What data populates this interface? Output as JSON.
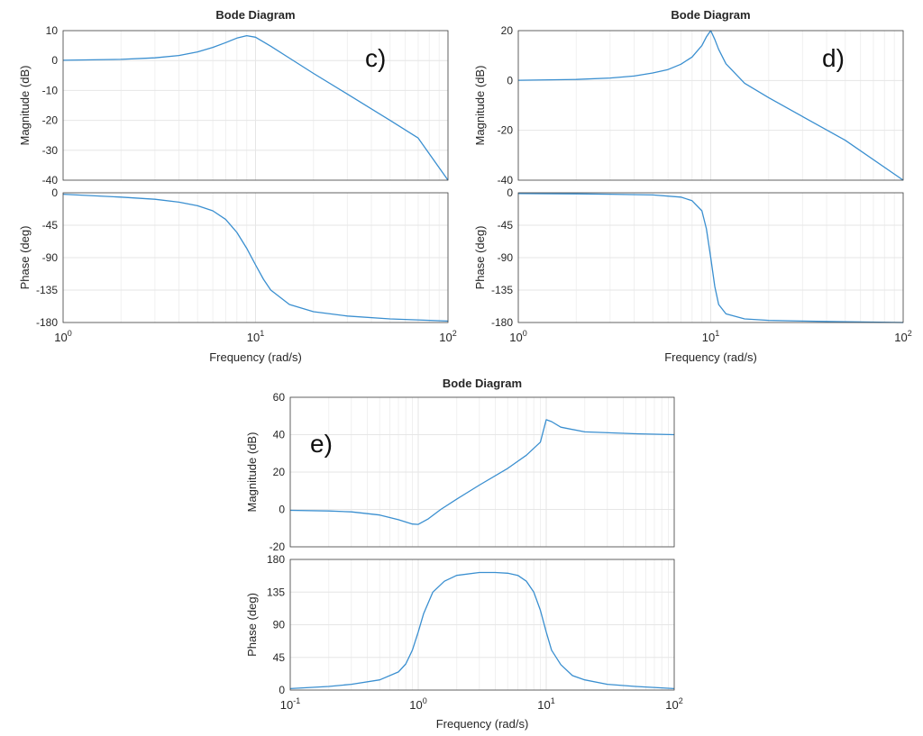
{
  "style": {
    "line_color": "#3a8fd0",
    "grid_color": "#e6e6e6",
    "axis_color": "#404040",
    "label_color": "#262626",
    "plot_bg": "#ffffff"
  },
  "chart_data": [
    {
      "type": "line",
      "title": "Bode Diagram",
      "panel_label": "c)",
      "xlabel": "Frequency  (rad/s)",
      "x_scale": "log",
      "x_decades": [
        0,
        2
      ],
      "x_tick_labels": [
        {
          "base": "10",
          "exp": "0"
        },
        {
          "base": "10",
          "exp": "1"
        },
        {
          "base": "10",
          "exp": "2"
        }
      ],
      "magnitude": {
        "ylabel": "Magnitude (dB)",
        "ylim": [
          -40,
          10
        ],
        "yticks": [
          -40,
          -30,
          -20,
          -10,
          0,
          10
        ],
        "series": [
          {
            "name": "magnitude",
            "x": [
              1,
              2,
              3,
              4,
              5,
              6,
              7,
              8,
              9,
              10,
              12,
              15,
              20,
              30,
              50,
              70,
              100
            ],
            "y": [
              0.1,
              0.4,
              0.9,
              1.7,
              2.9,
              4.4,
              6.0,
              7.5,
              8.3,
              7.8,
              4.8,
              0.8,
              -4.3,
              -11.2,
              -20.0,
              -25.9,
              -40.0
            ]
          }
        ]
      },
      "phase": {
        "ylabel": "Phase (deg)",
        "ylim": [
          -180,
          0
        ],
        "yticks": [
          -180,
          -135,
          -90,
          -45,
          0
        ],
        "series": [
          {
            "name": "phase",
            "x": [
              1,
              2,
              3,
              4,
              5,
              6,
              7,
              8,
              9,
              10,
              11,
              12,
              15,
              20,
              30,
              50,
              100
            ],
            "y": [
              -2,
              -6,
              -9,
              -13,
              -18,
              -25,
              -37,
              -55,
              -77,
              -100,
              -120,
              -135,
              -155,
              -165,
              -171,
              -175,
              -178
            ]
          }
        ]
      }
    },
    {
      "type": "line",
      "title": "Bode Diagram",
      "panel_label": "d)",
      "xlabel": "Frequency  (rad/s)",
      "x_scale": "log",
      "x_decades": [
        0,
        2
      ],
      "x_tick_labels": [
        {
          "base": "10",
          "exp": "0"
        },
        {
          "base": "10",
          "exp": "1"
        },
        {
          "base": "10",
          "exp": "2"
        }
      ],
      "magnitude": {
        "ylabel": "Magnitude (dB)",
        "ylim": [
          -40,
          20
        ],
        "yticks": [
          -40,
          -20,
          0,
          20
        ],
        "series": [
          {
            "name": "magnitude",
            "x": [
              1,
              2,
              3,
              4,
              5,
              6,
              7,
              8,
              9,
              9.5,
              10,
              10.5,
              11,
              12,
              15,
              20,
              30,
              50,
              100
            ],
            "y": [
              0.1,
              0.4,
              1.0,
              1.8,
              3.0,
              4.4,
              6.5,
              9.4,
              14.0,
              17.5,
              20.0,
              16.5,
              12.5,
              6.7,
              -1.1,
              -6.9,
              -14.5,
              -24.0,
              -40.0
            ]
          }
        ]
      },
      "phase": {
        "ylabel": "Phase (deg)",
        "ylim": [
          -180,
          0
        ],
        "yticks": [
          -180,
          -135,
          -90,
          -45,
          0
        ],
        "series": [
          {
            "name": "phase",
            "x": [
              1,
              2,
              3,
              5,
              7,
              8,
              9,
              9.5,
              10,
              10.5,
              11,
              12,
              15,
              20,
              30,
              50,
              100
            ],
            "y": [
              -1,
              -1.5,
              -2,
              -3,
              -6,
              -11,
              -25,
              -50,
              -90,
              -130,
              -155,
              -168,
              -175,
              -177,
              -178,
              -179,
              -180
            ]
          }
        ]
      }
    },
    {
      "type": "line",
      "title": "Bode Diagram",
      "panel_label": "e)",
      "xlabel": "Frequency  (rad/s)",
      "x_scale": "log",
      "x_decades": [
        -1,
        2
      ],
      "x_tick_labels": [
        {
          "base": "10",
          "exp": "-1"
        },
        {
          "base": "10",
          "exp": "0"
        },
        {
          "base": "10",
          "exp": "1"
        },
        {
          "base": "10",
          "exp": "2"
        }
      ],
      "magnitude": {
        "ylabel": "Magnitude (dB)",
        "ylim": [
          -20,
          60
        ],
        "yticks": [
          -20,
          0,
          20,
          40,
          60
        ],
        "series": [
          {
            "name": "magnitude",
            "x": [
              0.1,
              0.2,
              0.3,
              0.5,
              0.7,
              0.9,
              1.0,
              1.2,
              1.5,
              2,
              3,
              5,
              7,
              9,
              10,
              11,
              13,
              20,
              50,
              100
            ],
            "y": [
              -0.5,
              -0.8,
              -1.3,
              -3.0,
              -5.5,
              -7.8,
              -8.0,
              -5.0,
              0,
              5.5,
              13.0,
              22.0,
              29.0,
              36.0,
              48.0,
              47.0,
              44.0,
              41.5,
              40.5,
              40.0
            ]
          }
        ]
      },
      "phase": {
        "ylabel": "Phase (deg)",
        "ylim": [
          0,
          180
        ],
        "yticks": [
          0,
          45,
          90,
          135,
          180
        ],
        "series": [
          {
            "name": "phase",
            "x": [
              0.1,
              0.2,
              0.3,
              0.5,
              0.7,
              0.8,
              0.9,
              1.0,
              1.1,
              1.3,
              1.6,
              2,
              3,
              4,
              5,
              6,
              7,
              8,
              9,
              10,
              11,
              13,
              16,
              20,
              30,
              50,
              100
            ],
            "y": [
              2,
              5,
              8,
              14,
              25,
              36,
              55,
              80,
              105,
              135,
              150,
              158,
              162,
              162,
              161,
              158,
              150,
              135,
              110,
              80,
              55,
              35,
              20,
              14,
              8,
              5,
              2
            ]
          }
        ]
      }
    }
  ]
}
